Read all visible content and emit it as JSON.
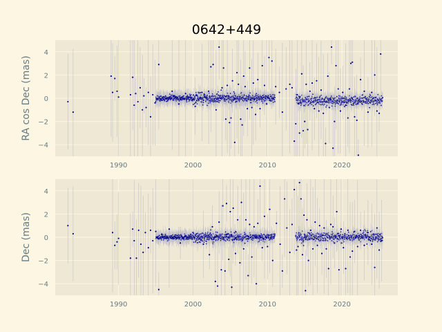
{
  "chart_data": {
    "type": "scatter",
    "title": "0642+449",
    "colors": {
      "background": "#fdf6e3",
      "plot_background": "#eee8d5",
      "grid": "#fdf6e3",
      "points": "#00008b",
      "error_bars": "#b0b0c0",
      "tick_text": "#657b83"
    },
    "panels": [
      {
        "id": "ra",
        "ylabel": "RA cos Dec (mas)",
        "xlim": [
          1981.5,
          2027.5
        ],
        "ylim": [
          -5,
          5
        ],
        "xticks": [
          1990,
          2000,
          2010,
          2020
        ],
        "xtick_labels": [
          "1990",
          "2000",
          "2010",
          "2020"
        ],
        "yticks": [
          -4,
          -2,
          0,
          2,
          4
        ],
        "ytick_labels": [
          "−4",
          "−2",
          "0",
          "2",
          "4"
        ],
        "grid": true,
        "points": [
          [
            1983.2,
            -0.3
          ],
          [
            1983.9,
            -1.2
          ],
          [
            1989.0,
            1.9
          ],
          [
            1989.2,
            0.5
          ],
          [
            1989.5,
            1.7
          ],
          [
            1989.8,
            0.6
          ],
          [
            1990.0,
            0.1
          ],
          [
            1991.6,
            0.3
          ],
          [
            1991.9,
            1.8
          ],
          [
            1992.1,
            -0.6
          ],
          [
            1992.3,
            0.4
          ],
          [
            1992.6,
            -0.3
          ],
          [
            1992.9,
            0.9
          ],
          [
            1993.2,
            -1.0
          ],
          [
            1993.4,
            0.2
          ],
          [
            1993.7,
            -0.8
          ],
          [
            1994.0,
            0.5
          ],
          [
            1994.3,
            -1.6
          ],
          [
            1994.6,
            0.3
          ],
          [
            1994.9,
            -0.4
          ],
          [
            1995.4,
            2.9
          ],
          [
            1997.2,
            0.6
          ],
          [
            1998.1,
            -0.5
          ],
          [
            1999.0,
            0.4
          ],
          [
            2000.3,
            -0.7
          ],
          [
            2001.2,
            0.5
          ],
          [
            2002.1,
            0.6
          ],
          [
            2002.4,
            2.7
          ],
          [
            2002.7,
            2.9
          ],
          [
            2003.1,
            -1.0
          ],
          [
            2003.5,
            4.4
          ],
          [
            2003.9,
            0.9
          ],
          [
            2004.1,
            2.6
          ],
          [
            2004.4,
            -1.8
          ],
          [
            2004.6,
            1.1
          ],
          [
            2004.9,
            -2.1
          ],
          [
            2005.1,
            -1.7
          ],
          [
            2005.3,
            1.5
          ],
          [
            2005.6,
            -3.8
          ],
          [
            2005.9,
            2.2
          ],
          [
            2006.1,
            1.2
          ],
          [
            2006.4,
            -1.8
          ],
          [
            2006.6,
            -2.3
          ],
          [
            2006.8,
            1.9
          ],
          [
            2007.0,
            1.0
          ],
          [
            2007.3,
            -0.9
          ],
          [
            2007.6,
            2.6
          ],
          [
            2007.9,
            -0.8
          ],
          [
            2008.1,
            1.3
          ],
          [
            2008.4,
            -1.4
          ],
          [
            2008.7,
            1.6
          ],
          [
            2009.0,
            -0.9
          ],
          [
            2009.3,
            2.8
          ],
          [
            2009.6,
            1.1
          ],
          [
            2009.9,
            -0.5
          ],
          [
            2010.2,
            3.5
          ],
          [
            2010.6,
            3.2
          ],
          [
            2011.1,
            1.0
          ],
          [
            2011.6,
            0.5
          ],
          [
            2012.0,
            -1.2
          ],
          [
            2012.5,
            0.8
          ],
          [
            2013.0,
            1.2
          ],
          [
            2013.3,
            0.9
          ],
          [
            2013.6,
            -3.7
          ],
          [
            2013.8,
            -2.2
          ],
          [
            2014.0,
            0.3
          ],
          [
            2014.3,
            -3.0
          ],
          [
            2014.6,
            2.1
          ],
          [
            2014.8,
            -2.8
          ],
          [
            2015.0,
            -2.0
          ],
          [
            2015.2,
            1.2
          ],
          [
            2015.4,
            -2.7
          ],
          [
            2015.7,
            0.6
          ],
          [
            2016.0,
            1.3
          ],
          [
            2016.3,
            -0.9
          ],
          [
            2016.6,
            1.5
          ],
          [
            2016.9,
            -1.1
          ],
          [
            2017.2,
            0.7
          ],
          [
            2017.5,
            -1.3
          ],
          [
            2017.8,
            -3.9
          ],
          [
            2018.1,
            1.9
          ],
          [
            2018.3,
            -0.8
          ],
          [
            2018.6,
            4.4
          ],
          [
            2018.8,
            -4.3
          ],
          [
            2019.0,
            -2.0
          ],
          [
            2019.2,
            2.8
          ],
          [
            2019.5,
            0.8
          ],
          [
            2019.8,
            -1.1
          ],
          [
            2020.1,
            0.5
          ],
          [
            2020.5,
            -0.6
          ],
          [
            2020.8,
            -1.7
          ],
          [
            2021.0,
            0.8
          ],
          [
            2021.2,
            3.0
          ],
          [
            2021.4,
            3.1
          ],
          [
            2021.7,
            -1.6
          ],
          [
            2022.0,
            -1.9
          ],
          [
            2022.2,
            -4.9
          ],
          [
            2022.5,
            1.6
          ],
          [
            2023.0,
            0.6
          ],
          [
            2023.5,
            -1.2
          ],
          [
            2024.0,
            0.5
          ],
          [
            2024.4,
            2.0
          ],
          [
            2024.7,
            -1.1
          ],
          [
            2025.0,
            -1.3
          ],
          [
            2025.2,
            3.8
          ]
        ]
      },
      {
        "id": "dec",
        "ylabel": "Dec (mas)",
        "xlim": [
          1981.5,
          2027.5
        ],
        "ylim": [
          -5,
          5
        ],
        "xticks": [
          1990,
          2000,
          2010,
          2020
        ],
        "xtick_labels": [
          "1990",
          "2000",
          "2010",
          "2020"
        ],
        "yticks": [
          -4,
          -2,
          0,
          2,
          4
        ],
        "ytick_labels": [
          "−4",
          "−2",
          "0",
          "2",
          "4"
        ],
        "grid": true,
        "points": [
          [
            1983.2,
            1.0
          ],
          [
            1983.9,
            0.3
          ],
          [
            1989.2,
            0.4
          ],
          [
            1989.5,
            -0.7
          ],
          [
            1989.8,
            -0.4
          ],
          [
            1990.0,
            -0.1
          ],
          [
            1991.6,
            -1.8
          ],
          [
            1991.9,
            0.7
          ],
          [
            1992.1,
            -0.3
          ],
          [
            1992.4,
            -1.8
          ],
          [
            1992.7,
            0.6
          ],
          [
            1993.0,
            -0.6
          ],
          [
            1993.3,
            -1.3
          ],
          [
            1993.6,
            0.4
          ],
          [
            1994.0,
            -0.9
          ],
          [
            1994.3,
            0.6
          ],
          [
            1994.6,
            -0.3
          ],
          [
            1995.0,
            0.5
          ],
          [
            1995.4,
            -4.5
          ],
          [
            1996.8,
            0.7
          ],
          [
            1998.3,
            -0.5
          ],
          [
            2000.0,
            0.4
          ],
          [
            2001.4,
            -0.6
          ],
          [
            2002.2,
            -1.5
          ],
          [
            2002.6,
            0.9
          ],
          [
            2003.0,
            -3.8
          ],
          [
            2003.3,
            -4.2
          ],
          [
            2003.5,
            1.3
          ],
          [
            2003.8,
            -2.8
          ],
          [
            2004.0,
            2.7
          ],
          [
            2004.3,
            -2.9
          ],
          [
            2004.5,
            2.9
          ],
          [
            2004.8,
            -1.9
          ],
          [
            2005.0,
            2.2
          ],
          [
            2005.2,
            -4.3
          ],
          [
            2005.4,
            2.5
          ],
          [
            2005.7,
            -1.4
          ],
          [
            2006.0,
            1.5
          ],
          [
            2006.3,
            -2.2
          ],
          [
            2006.5,
            3.0
          ],
          [
            2006.8,
            -1.0
          ],
          [
            2007.1,
            1.5
          ],
          [
            2007.4,
            -3.3
          ],
          [
            2007.6,
            1.1
          ],
          [
            2007.9,
            -1.7
          ],
          [
            2008.2,
            0.9
          ],
          [
            2008.5,
            -4.0
          ],
          [
            2008.7,
            1.2
          ],
          [
            2009.0,
            4.4
          ],
          [
            2009.3,
            -0.9
          ],
          [
            2009.6,
            1.8
          ],
          [
            2010.0,
            -0.8
          ],
          [
            2010.3,
            2.4
          ],
          [
            2010.7,
            -2.0
          ],
          [
            2011.2,
            1.2
          ],
          [
            2011.7,
            -0.6
          ],
          [
            2012.0,
            -2.9
          ],
          [
            2012.3,
            3.3
          ],
          [
            2012.6,
            0.8
          ],
          [
            2013.0,
            -1.3
          ],
          [
            2013.3,
            1.1
          ],
          [
            2013.6,
            4.1
          ],
          [
            2013.9,
            -1.1
          ],
          [
            2014.1,
            -0.8
          ],
          [
            2014.3,
            4.7
          ],
          [
            2014.5,
            3.3
          ],
          [
            2014.7,
            -1.5
          ],
          [
            2014.9,
            1.9
          ],
          [
            2015.1,
            -4.6
          ],
          [
            2015.3,
            1.5
          ],
          [
            2015.5,
            -2.0
          ],
          [
            2015.8,
            0.6
          ],
          [
            2016.1,
            -1.0
          ],
          [
            2016.4,
            1.3
          ],
          [
            2016.7,
            -0.7
          ],
          [
            2017.0,
            1.0
          ],
          [
            2017.3,
            -1.4
          ],
          [
            2017.6,
            0.8
          ],
          [
            2017.9,
            -1.0
          ],
          [
            2018.2,
            -2.7
          ],
          [
            2018.5,
            1.1
          ],
          [
            2018.8,
            0.9
          ],
          [
            2019.0,
            -0.5
          ],
          [
            2019.3,
            2.2
          ],
          [
            2019.6,
            -2.8
          ],
          [
            2019.9,
            0.7
          ],
          [
            2020.2,
            -0.9
          ],
          [
            2020.5,
            -2.7
          ],
          [
            2020.8,
            0.6
          ],
          [
            2021.1,
            -1.7
          ],
          [
            2021.4,
            -1.2
          ],
          [
            2021.7,
            0.5
          ],
          [
            2022.1,
            -0.8
          ],
          [
            2022.5,
            0.6
          ],
          [
            2023.0,
            -0.7
          ],
          [
            2023.5,
            0.4
          ],
          [
            2024.0,
            -0.6
          ],
          [
            2024.4,
            -2.6
          ],
          [
            2024.7,
            0.8
          ],
          [
            2025.0,
            -1.1
          ],
          [
            2025.3,
            -0.3
          ]
        ]
      }
    ]
  }
}
